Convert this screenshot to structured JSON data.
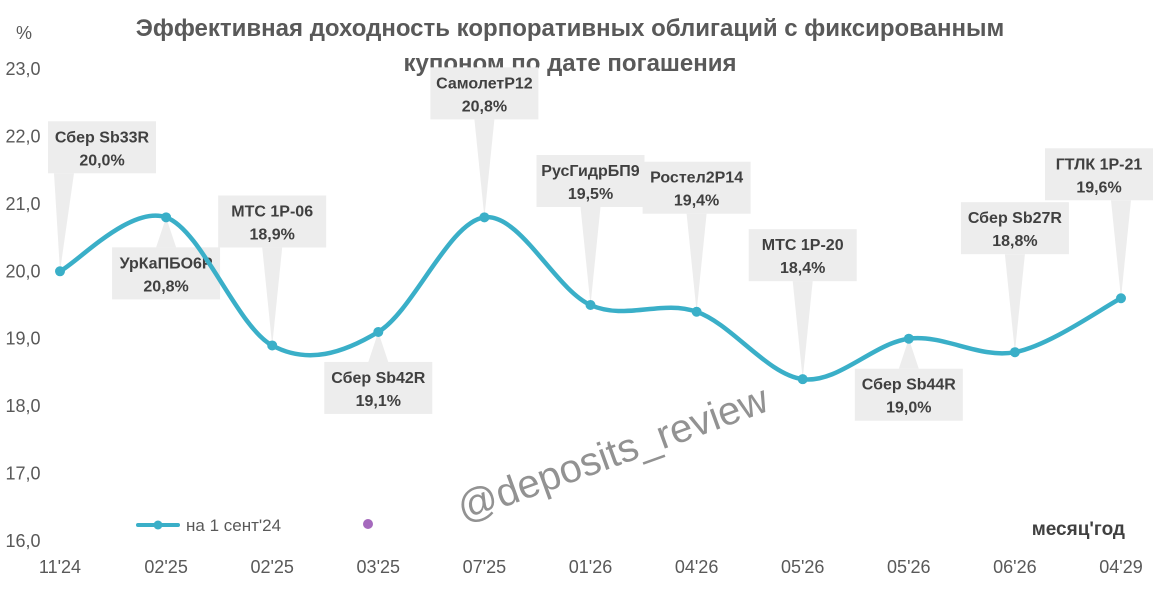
{
  "chart_data": {
    "type": "line",
    "title_lines": [
      "Эффективная доходность корпоративных облигаций с фиксированным",
      "купоном по дате погашения"
    ],
    "ylabel": "%",
    "xlabel": "месяц'год",
    "ylim": [
      16.0,
      23.0
    ],
    "yticks": [
      "16,0",
      "17,0",
      "18,0",
      "19,0",
      "20,0",
      "21,0",
      "22,0",
      "23,0"
    ],
    "categories": [
      "11'24",
      "02'25",
      "02'25",
      "03'25",
      "07'25",
      "01'26",
      "04'26",
      "05'26",
      "05'26",
      "06'26",
      "04'29"
    ],
    "series": [
      {
        "name": "на 1 сент'24",
        "color": "#3AAFC8",
        "values": [
          20.0,
          20.8,
          18.9,
          19.1,
          20.8,
          19.5,
          19.4,
          18.4,
          19.0,
          18.8,
          19.6
        ]
      }
    ],
    "annotations": [
      {
        "bond": "Сбер Sb33R",
        "value": "20,0%",
        "position": "above"
      },
      {
        "bond": "УрКаПБО6Р",
        "value": "20,8%",
        "position": "below"
      },
      {
        "bond": "МТС 1Р-06",
        "value": "18,9%",
        "position": "above"
      },
      {
        "bond": "Сбер Sb42R",
        "value": "19,1%",
        "position": "below"
      },
      {
        "bond": "СамолетР12",
        "value": "20,8%",
        "position": "above"
      },
      {
        "bond": "РусГидрБП9",
        "value": "19,5%",
        "position": "above"
      },
      {
        "bond": "Ростел2Р14",
        "value": "19,4%",
        "position": "above"
      },
      {
        "bond": "МТС 1Р-20",
        "value": "18,4%",
        "position": "above"
      },
      {
        "bond": "Сбер Sb44R",
        "value": "19,0%",
        "position": "below"
      },
      {
        "bond": "Сбер Sb27R",
        "value": "18,8%",
        "position": "above"
      },
      {
        "bond": "ГТЛК 1Р-21",
        "value": "19,6%",
        "position": "above"
      }
    ],
    "legend": {
      "position": "bottom-left",
      "label": "на 1 сент'24",
      "extra_marker_color": "#A569BD"
    },
    "watermark": "@deposits_review",
    "grid": false,
    "colors": {
      "line": "#3AAFC8",
      "callout_fill": "#EDEDED",
      "text": "#595959"
    }
  }
}
